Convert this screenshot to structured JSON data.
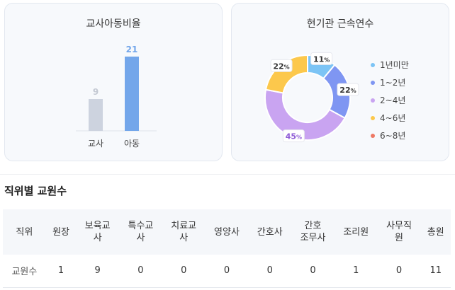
{
  "ratio_card": {
    "title": "교사아동비율"
  },
  "tenure_card": {
    "title": "현기관 근속연수"
  },
  "chart_data": [
    {
      "type": "bar",
      "title": "교사아동비율",
      "categories": [
        "교사",
        "아동"
      ],
      "values": [
        9,
        21
      ],
      "colors": [
        "#cdd3df",
        "#73a6ea"
      ],
      "label_colors": [
        "#c4c9d3",
        "#73a6ea"
      ],
      "ylim": [
        0,
        21
      ]
    },
    {
      "type": "pie",
      "title": "현기관 근속연수",
      "legend_position": "right",
      "slices": [
        {
          "name": "1년미만",
          "value": 11,
          "label": "11",
          "color": "#7cc4f5",
          "label_color": "#333333"
        },
        {
          "name": "1~2년",
          "value": 22,
          "label": "22",
          "color": "#7f96f2",
          "label_color": "#333333"
        },
        {
          "name": "2~4년",
          "value": 45,
          "label": "45",
          "color": "#c9a4f1",
          "label_color": "#8e5bd6"
        },
        {
          "name": "4~6년",
          "value": 22,
          "label": "22",
          "color": "#fcc84c",
          "label_color": "#333333"
        },
        {
          "name": "6~8년",
          "value": 0,
          "label": "",
          "color": "#ee7964",
          "label_color": "#333333"
        }
      ],
      "unit": "%"
    }
  ],
  "staff_section": {
    "title": "직위별 교원수",
    "headers": [
      [
        "직위"
      ],
      [
        "원장"
      ],
      [
        "보육교",
        "사"
      ],
      [
        "특수교",
        "사"
      ],
      [
        "치료교",
        "사"
      ],
      [
        "영양사"
      ],
      [
        "간호사"
      ],
      [
        "간호",
        "조무사"
      ],
      [
        "조리원"
      ],
      [
        "사무직",
        "원"
      ],
      [
        "총원"
      ]
    ],
    "row_label": "교원수",
    "values": [
      "1",
      "9",
      "0",
      "0",
      "0",
      "0",
      "0",
      "1",
      "0",
      "11"
    ]
  }
}
